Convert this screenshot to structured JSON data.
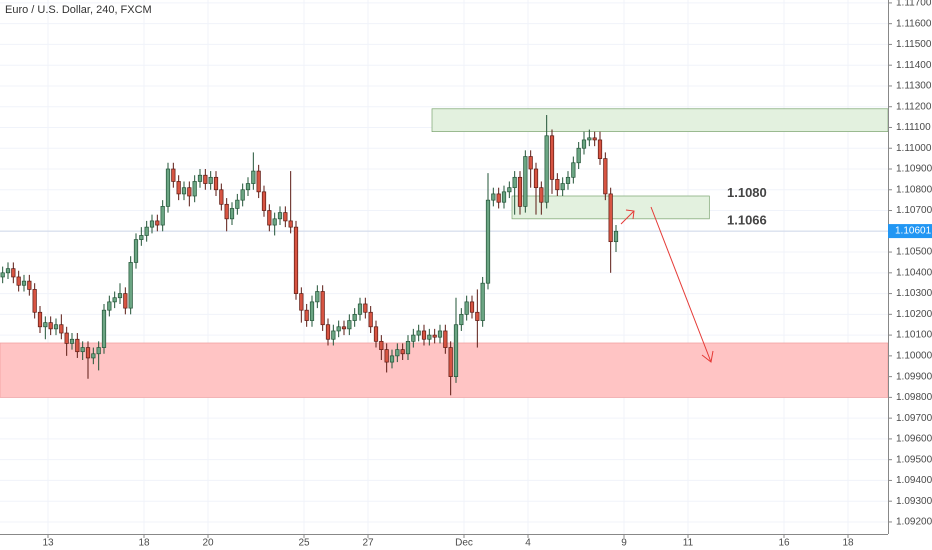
{
  "chart_data": {
    "type": "candlestick",
    "title": "Euro / U.S. Dollar, 240, FXCM",
    "x": [
      0,
      1,
      2,
      3,
      4,
      5,
      6,
      7,
      8,
      9,
      10,
      11,
      12,
      13,
      14,
      15,
      16,
      17,
      18,
      19,
      20,
      21,
      22,
      23,
      24,
      25,
      26,
      27,
      28,
      29,
      30,
      31,
      32,
      33,
      34,
      35,
      36,
      37,
      38,
      39,
      40,
      41,
      42,
      43,
      44,
      45,
      46,
      47,
      48,
      49,
      50,
      51,
      52,
      53,
      54,
      55,
      56,
      57,
      58,
      59,
      60,
      61,
      62,
      63,
      64,
      65,
      66,
      67,
      68,
      69,
      70,
      71,
      72,
      73,
      74,
      75,
      76,
      77,
      78,
      79,
      80,
      81,
      82,
      83,
      84,
      85,
      86,
      87,
      88,
      89,
      90,
      91,
      92,
      93,
      94,
      95,
      96,
      97,
      98,
      99,
      100,
      101,
      102,
      103,
      104,
      105,
      106,
      107,
      108,
      109,
      110,
      111,
      112,
      113,
      114,
      115
    ],
    "open": [
      1.1038,
      1.104,
      1.1042,
      1.1038,
      1.1034,
      1.1036,
      1.1032,
      1.1021,
      1.1014,
      1.1016,
      1.1013,
      1.1015,
      1.1011,
      1.1006,
      1.1008,
      1.1002,
      1.1004,
      1.0999,
      1.1001,
      1.1004,
      1.1022,
      1.1026,
      1.1028,
      1.103,
      1.1023,
      1.1045,
      1.1056,
      1.1058,
      1.1062,
      1.1065,
      1.1063,
      1.1072,
      1.109,
      1.1084,
      1.1078,
      1.1081,
      1.1077,
      1.1084,
      1.1087,
      1.1083,
      1.1086,
      1.108,
      1.1073,
      1.1066,
      1.1071,
      1.1075,
      1.108,
      1.1083,
      1.1089,
      1.1079,
      1.107,
      1.1063,
      1.1066,
      1.1069,
      1.1065,
      1.1062,
      1.103,
      1.1022,
      1.1017,
      1.1026,
      1.1031,
      1.1015,
      1.1008,
      1.1012,
      1.1014,
      1.1013,
      1.1017,
      1.102,
      1.1025,
      1.1021,
      1.1014,
      1.1007,
      1.1003,
      1.0997,
      1.1,
      1.1003,
      1.1001,
      1.1007,
      1.101,
      1.1012,
      1.1008,
      1.101,
      1.1009,
      1.1012,
      1.1004,
      1.099,
      1.1015,
      1.102,
      1.1026,
      1.1021,
      1.1017,
      1.1035,
      1.1075,
      1.1078,
      1.1074,
      1.1079,
      1.1081,
      1.1086,
      1.1072,
      1.1096,
      1.109,
      1.1081,
      1.1074,
      1.1106,
      1.1085,
      1.108,
      1.1083,
      1.1086,
      1.1093,
      1.11,
      1.1104,
      1.1105,
      1.1104,
      1.1095,
      1.1078,
      1.1055
    ],
    "high": [
      1.1043,
      1.1045,
      1.1045,
      1.1041,
      1.1039,
      1.1039,
      1.1035,
      1.1024,
      1.1019,
      1.1019,
      1.1018,
      1.102,
      1.1014,
      1.1011,
      1.1011,
      1.1007,
      1.1007,
      1.1004,
      1.1007,
      1.1025,
      1.1029,
      1.1031,
      1.1035,
      1.1033,
      1.1048,
      1.1059,
      1.1062,
      1.1065,
      1.1068,
      1.1068,
      1.1075,
      1.1093,
      1.1093,
      1.1087,
      1.1084,
      1.1084,
      1.1087,
      1.109,
      1.109,
      1.1089,
      1.1089,
      1.1083,
      1.1076,
      1.1074,
      1.1078,
      1.1083,
      1.1086,
      1.1098,
      1.1092,
      1.1082,
      1.1073,
      1.1069,
      1.1072,
      1.1072,
      1.1089,
      1.1065,
      1.1033,
      1.1025,
      1.1029,
      1.1034,
      1.1034,
      1.1018,
      1.1015,
      1.1017,
      1.1017,
      1.102,
      1.1023,
      1.1028,
      1.1028,
      1.1024,
      1.1017,
      1.101,
      1.1006,
      1.1003,
      1.1006,
      1.1006,
      1.101,
      1.1013,
      1.1015,
      1.1015,
      1.1013,
      1.1013,
      1.1015,
      1.1015,
      1.1007,
      1.1028,
      1.1023,
      1.1029,
      1.1029,
      1.1032,
      1.1038,
      1.1088,
      1.1081,
      1.1081,
      1.1082,
      1.1084,
      1.1089,
      1.1089,
      1.1099,
      1.1099,
      1.1093,
      1.1084,
      1.1116,
      1.1109,
      1.1088,
      1.1086,
      1.1089,
      1.1096,
      1.1103,
      1.1108,
      1.1109,
      1.1108,
      1.1108,
      1.1098,
      1.1081,
      1.1063
    ],
    "low": [
      1.1035,
      1.1037,
      1.1035,
      1.1031,
      1.1031,
      1.1029,
      1.1018,
      1.1011,
      1.1008,
      1.101,
      1.101,
      1.1008,
      1.1,
      1.1003,
      1.0999,
      1.0998,
      1.0989,
      1.0996,
      1.0993,
      1.1001,
      1.1019,
      1.1023,
      1.1025,
      1.102,
      1.102,
      1.1042,
      1.1053,
      1.1055,
      1.1059,
      1.106,
      1.106,
      1.1069,
      1.1081,
      1.1075,
      1.1075,
      1.1072,
      1.1074,
      1.1081,
      1.108,
      1.108,
      1.1077,
      1.107,
      1.106,
      1.1063,
      1.1068,
      1.1072,
      1.1077,
      1.108,
      1.1076,
      1.1067,
      1.106,
      1.1058,
      1.1063,
      1.1062,
      1.1059,
      1.1027,
      1.1016,
      1.1014,
      1.1014,
      1.1023,
      1.1012,
      1.1005,
      1.1005,
      1.1009,
      1.101,
      1.101,
      1.1014,
      1.1017,
      1.1018,
      1.1011,
      1.1004,
      1.0998,
      1.0992,
      1.0994,
      1.0997,
      1.0998,
      1.0998,
      1.1004,
      1.1007,
      1.1005,
      1.1005,
      1.1006,
      1.1006,
      1.1001,
      1.0981,
      1.0987,
      1.1012,
      1.1017,
      1.1018,
      1.1004,
      1.1014,
      1.1032,
      1.1072,
      1.1071,
      1.1071,
      1.1076,
      1.1068,
      1.1068,
      1.1069,
      1.1081,
      1.1068,
      1.1068,
      1.1071,
      1.1078,
      1.1077,
      1.1077,
      1.108,
      1.1083,
      1.109,
      1.1097,
      1.1101,
      1.1101,
      1.1092,
      1.1075,
      1.104,
      1.105
    ],
    "close": [
      1.104,
      1.1042,
      1.1038,
      1.1034,
      1.1036,
      1.1032,
      1.1021,
      1.1014,
      1.1016,
      1.1013,
      1.1015,
      1.1011,
      1.1006,
      1.1008,
      1.1002,
      1.1004,
      1.0999,
      1.1001,
      1.1004,
      1.1022,
      1.1026,
      1.1028,
      1.103,
      1.1023,
      1.1045,
      1.1056,
      1.1058,
      1.1062,
      1.1065,
      1.1063,
      1.1072,
      1.109,
      1.1084,
      1.1078,
      1.1081,
      1.1077,
      1.1084,
      1.1087,
      1.1083,
      1.1086,
      1.108,
      1.1073,
      1.1066,
      1.1071,
      1.1075,
      1.108,
      1.1083,
      1.1089,
      1.1079,
      1.107,
      1.1063,
      1.1066,
      1.1069,
      1.1065,
      1.1062,
      1.103,
      1.1022,
      1.1017,
      1.1026,
      1.1031,
      1.1015,
      1.1008,
      1.1012,
      1.1014,
      1.1013,
      1.1017,
      1.102,
      1.1025,
      1.1021,
      1.1014,
      1.1007,
      1.1003,
      1.0997,
      1.1,
      1.1003,
      1.1001,
      1.1007,
      1.101,
      1.1012,
      1.1008,
      1.101,
      1.1009,
      1.1012,
      1.1004,
      1.099,
      1.1015,
      1.102,
      1.1026,
      1.1021,
      1.1017,
      1.1035,
      1.1075,
      1.1078,
      1.1074,
      1.1079,
      1.1081,
      1.1086,
      1.1072,
      1.1096,
      1.109,
      1.1081,
      1.1074,
      1.1106,
      1.1085,
      1.108,
      1.1083,
      1.1086,
      1.1093,
      1.11,
      1.1104,
      1.1105,
      1.1104,
      1.1095,
      1.1078,
      1.1055,
      1.106
    ],
    "up_color": "#6ba583",
    "down_color": "#d75442",
    "xlim": [
      0,
      166.5
    ],
    "xticks": [
      {
        "value": 9,
        "label": "13"
      },
      {
        "value": 27,
        "label": "18"
      },
      {
        "value": 39,
        "label": "20"
      },
      {
        "value": 57,
        "label": "25"
      },
      {
        "value": 69,
        "label": "27"
      },
      {
        "value": 87,
        "label": "Dec"
      },
      {
        "value": 99,
        "label": "4"
      },
      {
        "value": 117,
        "label": "9"
      },
      {
        "value": 129,
        "label": "11"
      },
      {
        "value": 147,
        "label": "16"
      },
      {
        "value": 159,
        "label": "18"
      }
    ],
    "ylim": [
      1.09142,
      1.11714
    ],
    "yticks": [
      {
        "value": 1.092,
        "label": "1.09200"
      },
      {
        "value": 1.093,
        "label": "1.09300"
      },
      {
        "value": 1.094,
        "label": "1.09400"
      },
      {
        "value": 1.095,
        "label": "1.09500"
      },
      {
        "value": 1.096,
        "label": "1.09600"
      },
      {
        "value": 1.097,
        "label": "1.09700"
      },
      {
        "value": 1.098,
        "label": "1.09800"
      },
      {
        "value": 1.099,
        "label": "1.09900"
      },
      {
        "value": 1.1,
        "label": "1.10000"
      },
      {
        "value": 1.101,
        "label": "1.10100"
      },
      {
        "value": 1.102,
        "label": "1.10200"
      },
      {
        "value": 1.103,
        "label": "1.10300"
      },
      {
        "value": 1.104,
        "label": "1.10400"
      },
      {
        "value": 1.105,
        "label": "1.10500"
      },
      {
        "value": 1.106,
        "label": "1.10600"
      },
      {
        "value": 1.107,
        "label": "1.10700"
      },
      {
        "value": 1.108,
        "label": "1.10800"
      },
      {
        "value": 1.109,
        "label": "1.10900"
      },
      {
        "value": 1.11,
        "label": "1.11000"
      },
      {
        "value": 1.111,
        "label": "1.11100"
      },
      {
        "value": 1.112,
        "label": "1.11200"
      },
      {
        "value": 1.113,
        "label": "1.11300"
      },
      {
        "value": 1.114,
        "label": "1.11400"
      },
      {
        "value": 1.115,
        "label": "1.11500"
      },
      {
        "value": 1.116,
        "label": "1.11600"
      },
      {
        "value": 1.117,
        "label": "1.11700"
      }
    ],
    "grid": true,
    "zones": [
      {
        "x": [
          0,
          166.5
        ],
        "y": [
          1.098,
          1.10062
        ],
        "color": "#ffc4c4"
      },
      {
        "x": [
          81,
          166.5
        ],
        "y": [
          1.1108,
          1.1119
        ],
        "color": "#e3f1df"
      },
      {
        "x": [
          96,
          133
        ],
        "y": [
          1.1066,
          1.1077
        ],
        "color": "#e3f1df"
      }
    ],
    "annotations": [
      {
        "value": 1.108,
        "label": "1.1080"
      },
      {
        "value": 1.1066,
        "label": "1.1066"
      }
    ],
    "last_price": {
      "value": 1.10601,
      "label": "1.10601"
    }
  }
}
